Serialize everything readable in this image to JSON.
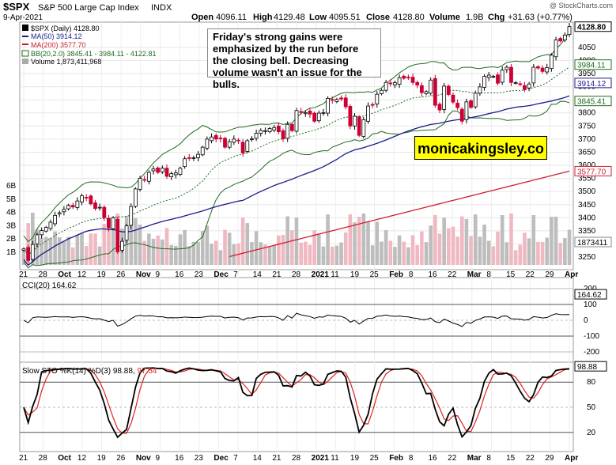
{
  "header": {
    "symbol": "$SPX",
    "name": "S&P 500 Large Cap Index",
    "exchange": "INDX",
    "date": "9-Apr-2021",
    "open_label": "Open",
    "open": "4096.11",
    "high_label": "High",
    "high": "4129.48",
    "low_label": "Low",
    "low": "4095.51",
    "close_label": "Close",
    "close": "4128.80",
    "volume_label": "Volume",
    "volume": "1.9B",
    "chg_label": "Chg",
    "chg": "+31.63 (+0.77%)",
    "credit": "@ StockCharts.com"
  },
  "legend": {
    "price": "$SPX (Daily) 4128.80",
    "ma50": "MA(50) 3914.12",
    "ma200": "MA(200) 3577.70",
    "bb": "BB(20,2.0) 3845.41 - 3984.11 - 4122.81",
    "volume": "Volume 1,873,411,968"
  },
  "annotation": "Friday's strong gains were emphasized by the run before the closing bell. Decreasing volume wasn't an issue for the bulls.",
  "watermark": "monicakingsley.co",
  "colors": {
    "up": "#000000",
    "down": "#cc0033",
    "ma50": "#1a1a8c",
    "ma200": "#cc1f2e",
    "bb": "#1f6b1f",
    "cci_fill": "#5a8a5a",
    "cci_neg": "#a85050",
    "sto_k": "#000000",
    "sto_d": "#dd2222"
  },
  "price_axis": [
    "4050",
    "4000",
    "3950",
    "3900",
    "3850",
    "3800",
    "3750",
    "3700",
    "3650",
    "3600",
    "3550",
    "3500",
    "3450",
    "3400",
    "3350",
    "3300",
    "3250"
  ],
  "price_tags": [
    "4128.80",
    "3984.11",
    "3914.12",
    "3845.41",
    "3577.70"
  ],
  "volume_axis": [
    "6B",
    "5B",
    "4B",
    "3B",
    "2B",
    "1B"
  ],
  "volume_tag": "1873411",
  "x_labels": [
    "21",
    "28",
    "Oct",
    "12",
    "19",
    "26",
    "Nov",
    "9",
    "16",
    "23",
    "Dec",
    "7",
    "14",
    "21",
    "28",
    "2021",
    "11",
    "19",
    "25",
    "Feb",
    "8",
    "16",
    "22",
    "Mar",
    "8",
    "15",
    "22",
    "29",
    "Apr"
  ],
  "cci": {
    "label": "CCI(20) 164.62",
    "axis": [
      "200",
      "100",
      "0",
      "-100",
      "-200"
    ],
    "tag": "164.62"
  },
  "sto": {
    "label": "Slow STO %K(14) %D(3)",
    "k": "98.88",
    "d": "97.54",
    "axis": [
      "80",
      "50",
      "20"
    ],
    "tag": "98.88"
  },
  "chart_data": {
    "type": "candlestick",
    "title": "$SPX S&P 500 Large Cap Index INDX",
    "ylim": [
      3220,
      4140
    ],
    "closes": [
      3281,
      3237,
      3298,
      3335,
      3351,
      3363,
      3383,
      3409,
      3419,
      3432,
      3447,
      3441,
      3464,
      3484,
      3477,
      3453,
      3435,
      3440,
      3400,
      3362,
      3400,
      3270,
      3310,
      3369,
      3443,
      3510,
      3550,
      3545,
      3573,
      3586,
      3573,
      3589,
      3558,
      3568,
      3571,
      3589,
      3625,
      3626,
      3629,
      3642,
      3669,
      3700,
      3708,
      3700,
      3701,
      3669,
      3690,
      3700,
      3694,
      3647,
      3694,
      3701,
      3722,
      3733,
      3732,
      3740,
      3744,
      3728,
      3701,
      3756,
      3732,
      3809,
      3803,
      3801,
      3795,
      3768,
      3799,
      3801,
      3855,
      3849,
      3851,
      3853,
      3823,
      3750,
      3787,
      3714,
      3774,
      3826,
      3830,
      3871,
      3886,
      3916,
      3911,
      3915,
      3934,
      3932,
      3934,
      3916,
      3906,
      3877,
      3881,
      3925,
      3829,
      3811,
      3902,
      3870,
      3841,
      3820,
      3768,
      3842,
      3821,
      3875,
      3899,
      3939,
      3944,
      3939,
      3913,
      3963,
      3974,
      3916,
      3915,
      3910,
      3889,
      3910,
      3974,
      3971,
      3958,
      3973,
      4020,
      4078,
      4074,
      4097,
      4129
    ]
  }
}
